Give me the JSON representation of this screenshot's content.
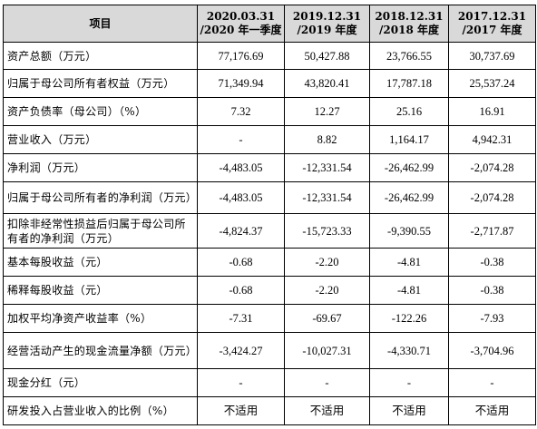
{
  "header": {
    "item": "项目",
    "periods": [
      {
        "line1": "2020.03.31",
        "line2": "/2020 年一季度"
      },
      {
        "line1": "2019.12.31",
        "line2": "/2019 年度"
      },
      {
        "line1": "2018.12.31",
        "line2": "/2018 年度"
      },
      {
        "line1": "2017.12.31",
        "line2": "/2017 年度"
      }
    ]
  },
  "rows": [
    {
      "label": "资产总额（万元）",
      "values": [
        "77,176.69",
        "50,427.88",
        "23,766.55",
        "30,737.69"
      ]
    },
    {
      "label": "归属于母公司所有者权益（万元）",
      "values": [
        "71,349.94",
        "43,820.41",
        "17,787.18",
        "25,537.24"
      ]
    },
    {
      "label": "资产负债率（母公司）（%）",
      "values": [
        "7.32",
        "12.27",
        "25.16",
        "16.91"
      ]
    },
    {
      "label": "营业收入（万元）",
      "values": [
        "-",
        "8.82",
        "1,164.17",
        "4,942.31"
      ]
    },
    {
      "label": "净利润（万元）",
      "values": [
        "-4,483.05",
        "-12,331.54",
        "-26,462.99",
        "-2,074.28"
      ]
    },
    {
      "label": "归属于母公司所有者的净利润（万元）",
      "values": [
        "-4,483.05",
        "-12,331.54",
        "-26,462.99",
        "-2,074.28"
      ]
    },
    {
      "label": "扣除非经常性损益后归属于母公司所有者的净利润（万元）",
      "values": [
        "-4,824.37",
        "-15,723.33",
        "-9,390.55",
        "-2,717.87"
      ]
    },
    {
      "label": "基本每股收益（元）",
      "values": [
        "-0.68",
        "-2.20",
        "-4.81",
        "-0.38"
      ]
    },
    {
      "label": "稀释每股收益（元）",
      "values": [
        "-0.68",
        "-2.20",
        "-4.81",
        "-0.38"
      ]
    },
    {
      "label": "加权平均净资产收益率（%）",
      "values": [
        "-7.31",
        "-69.67",
        "-122.26",
        "-7.93"
      ]
    },
    {
      "label": "经营活动产生的现金流量净额（万元）",
      "values": [
        "-3,424.27",
        "-10,027.31",
        "-4,330.71",
        "-3,704.96"
      ]
    },
    {
      "label": "现金分红（元）",
      "values": [
        "-",
        "-",
        "-",
        "-"
      ]
    },
    {
      "label": "研发投入占营业收入的比例（%）",
      "values": [
        "不适用",
        "不适用",
        "不适用",
        "不适用"
      ]
    }
  ]
}
